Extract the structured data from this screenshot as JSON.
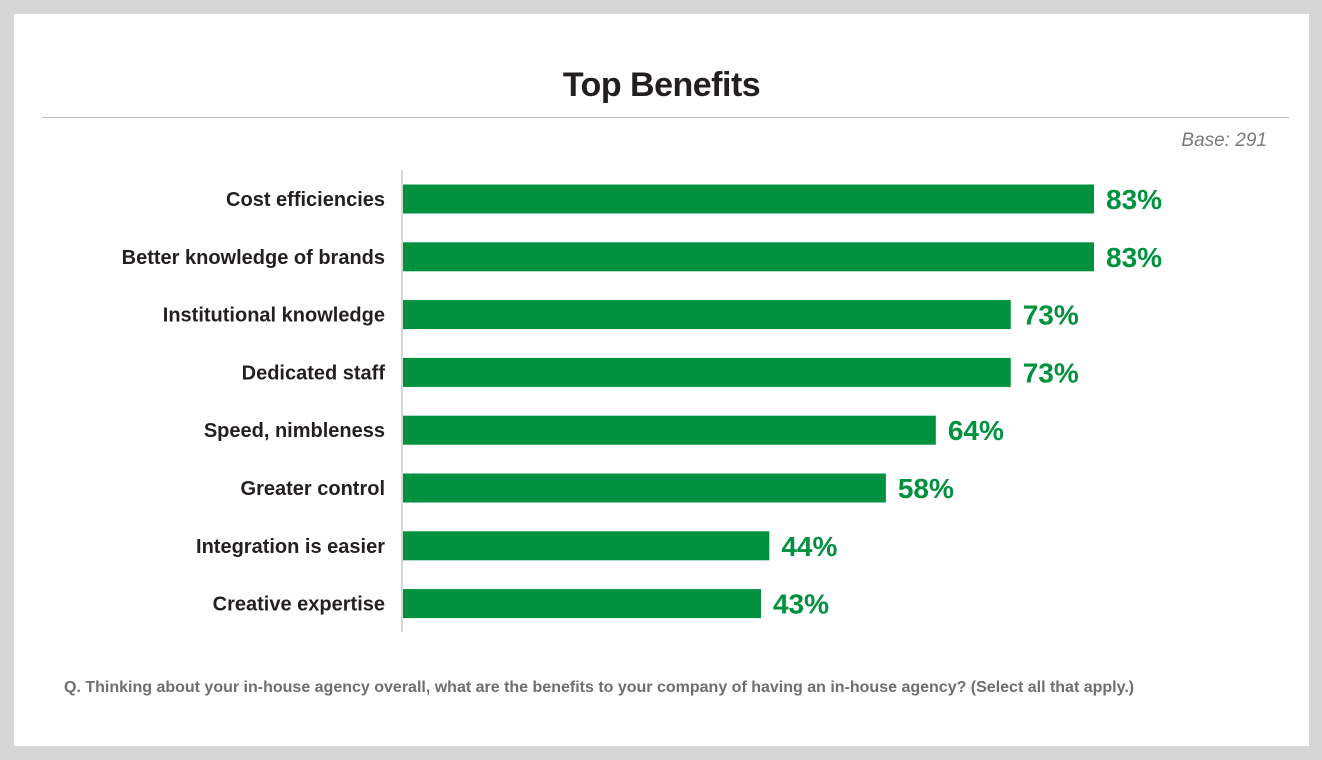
{
  "header": {
    "base_note": "Base: 291"
  },
  "footer": {
    "question": "Q. Thinking about your in-house agency overall, what are the benefits to your company of having an in-house agency? (Select all that apply.)"
  },
  "colors": {
    "bar": "#00913f",
    "label": "#00913f",
    "text": "#231f20",
    "axis": "#c8c8c8"
  },
  "chart_data": {
    "type": "bar",
    "orientation": "horizontal",
    "title": "Top Benefits",
    "categories": [
      "Cost efficiencies",
      "Better knowledge of brands",
      "Institutional knowledge",
      "Dedicated staff",
      "Speed, nimbleness",
      "Greater control",
      "Integration is easier",
      "Creative expertise"
    ],
    "values": [
      83,
      83,
      73,
      73,
      64,
      58,
      44,
      43
    ],
    "value_labels": [
      "83%",
      "83%",
      "73%",
      "73%",
      "64%",
      "58%",
      "44%",
      "43%"
    ],
    "unit": "%",
    "xlim": [
      0,
      100
    ],
    "grid": false,
    "legend": "none"
  }
}
